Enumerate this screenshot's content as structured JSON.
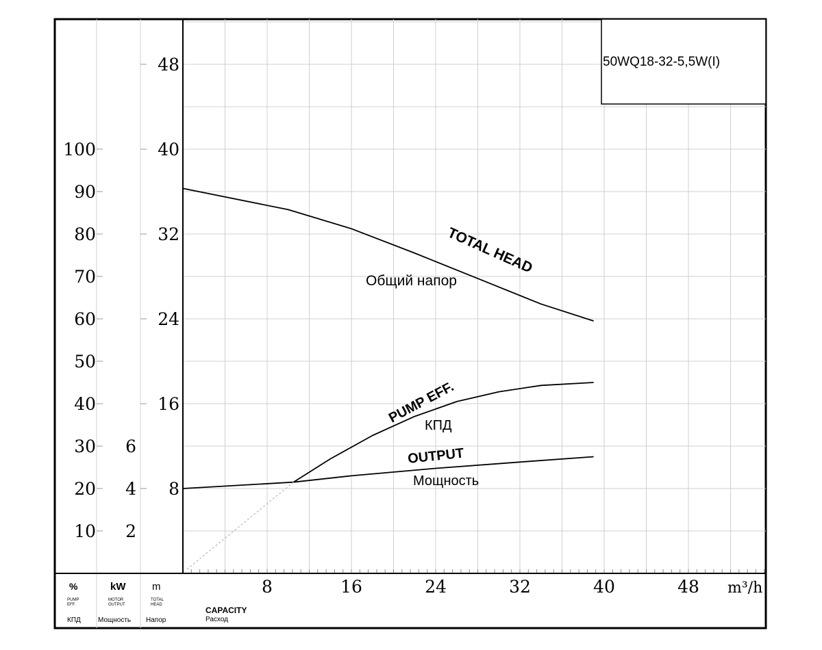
{
  "chart_data": {
    "type": "line",
    "model": "50WQ18-32-5,5W(I)",
    "x_unit": "m³/h",
    "xlim": [
      0,
      56
    ],
    "x_ticks": [
      "8",
      "16",
      "24",
      "32",
      "40",
      "48"
    ],
    "head_ticks": [
      "48",
      "40",
      "32",
      "24",
      "16",
      "8"
    ],
    "eff_ticks": [
      "100",
      "90",
      "80",
      "70",
      "60",
      "50",
      "40",
      "30",
      "20",
      "10"
    ],
    "kw_ticks": [
      "6",
      "4",
      "2"
    ],
    "ylim_head": [
      0,
      52
    ],
    "ylim_eff": [
      0,
      130
    ],
    "axis_header": {
      "eff": {
        "unit": "%",
        "line1": "PUMP",
        "line2": "EFF.",
        "ru": "КПД"
      },
      "kw": {
        "unit": "kW",
        "line1": "MOTOR",
        "line2": "OUTPUT",
        "ru": "Мощность"
      },
      "head": {
        "unit": "m",
        "line1": "TOTAL",
        "line2": "HEAD",
        "ru": "Напор"
      }
    },
    "capacity_label": {
      "en": "CAPACITY",
      "ru": "Расход"
    },
    "series": [
      {
        "name": "TOTAL HEAD",
        "name_ru": "Общий напор",
        "axis": "head",
        "x": [
          0,
          10,
          16,
          22,
          28,
          34,
          39
        ],
        "y": [
          36.3,
          34.3,
          32.5,
          30.2,
          27.8,
          25.4,
          23.8
        ]
      },
      {
        "name": "PUMP EFF.",
        "name_ru": "КПД",
        "axis": "eff",
        "x": [
          10.5,
          14,
          18,
          22,
          26,
          30,
          34,
          39
        ],
        "y": [
          21.5,
          27.0,
          32.5,
          37.0,
          40.5,
          42.8,
          44.3,
          45.0
        ]
      },
      {
        "name": "OUTPUT",
        "name_ru": "Мощность",
        "axis": "kw",
        "x": [
          0,
          10.5,
          16,
          24,
          32,
          39
        ],
        "y": [
          4.0,
          4.3,
          4.6,
          4.95,
          5.25,
          5.5
        ]
      }
    ]
  }
}
